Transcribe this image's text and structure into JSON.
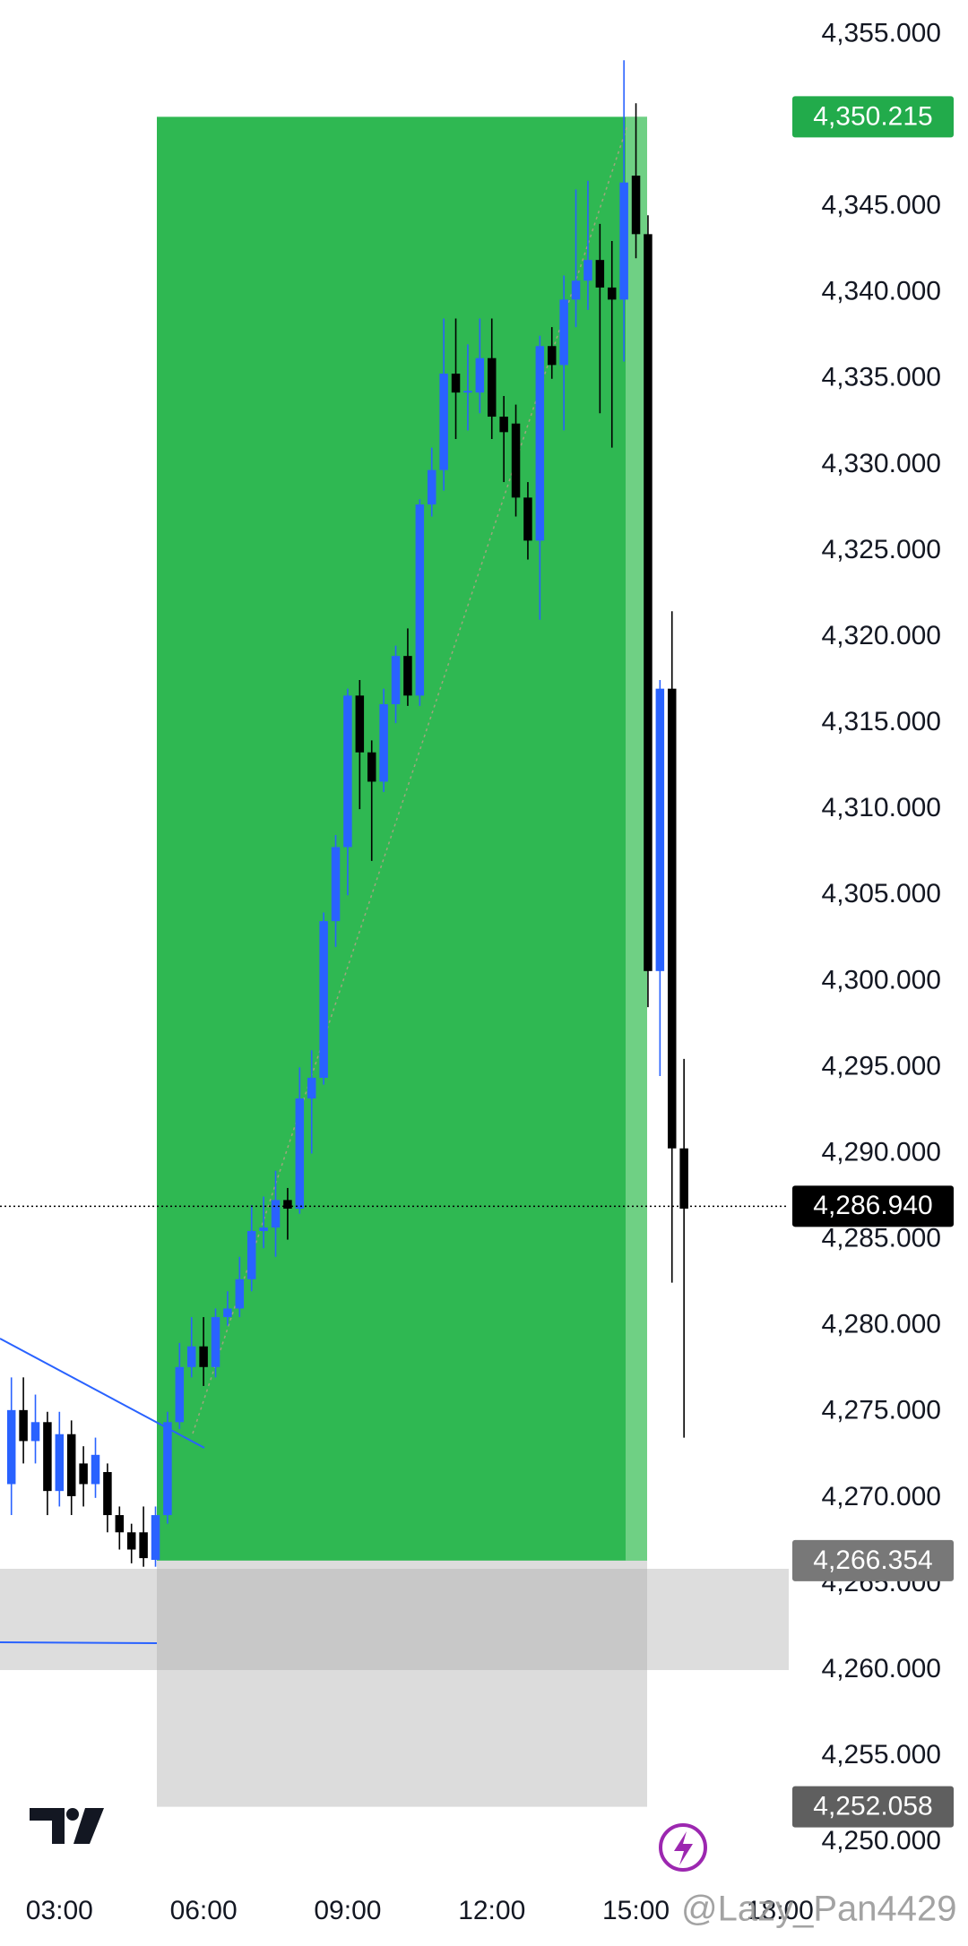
{
  "chart_data": {
    "type": "candlestick",
    "up_color": "#2962ff",
    "down_color": "#000000",
    "xlim": [
      1.763,
      18.18
    ],
    "ylim": [
      4248.5,
      4357.0
    ],
    "xticks": [
      {
        "value": 3,
        "label": "03:00"
      },
      {
        "value": 6,
        "label": "06:00"
      },
      {
        "value": 9,
        "label": "09:00"
      },
      {
        "value": 12,
        "label": "12:00"
      },
      {
        "value": 15,
        "label": "15:00"
      },
      {
        "value": 18,
        "label": "18:00"
      }
    ],
    "yticks": [
      {
        "value": 4250,
        "label": "4,250.000"
      },
      {
        "value": 4255,
        "label": "4,255.000"
      },
      {
        "value": 4260,
        "label": "4,260.000"
      },
      {
        "value": 4265,
        "label": "4,265.000"
      },
      {
        "value": 4270,
        "label": "4,270.000"
      },
      {
        "value": 4275,
        "label": "4,275.000"
      },
      {
        "value": 4280,
        "label": "4,280.000"
      },
      {
        "value": 4285,
        "label": "4,285.000"
      },
      {
        "value": 4290,
        "label": "4,290.000"
      },
      {
        "value": 4295,
        "label": "4,295.000"
      },
      {
        "value": 4300,
        "label": "4,300.000"
      },
      {
        "value": 4305,
        "label": "4,305.000"
      },
      {
        "value": 4310,
        "label": "4,310.000"
      },
      {
        "value": 4315,
        "label": "4,315.000"
      },
      {
        "value": 4320,
        "label": "4,320.000"
      },
      {
        "value": 4325,
        "label": "4,325.000"
      },
      {
        "value": 4330,
        "label": "4,330.000"
      },
      {
        "value": 4335,
        "label": "4,335.000"
      },
      {
        "value": 4340,
        "label": "4,340.000"
      },
      {
        "value": 4345,
        "label": "4,345.000"
      },
      {
        "value": 4350,
        "label": "4,350.000"
      },
      {
        "value": 4355,
        "label": "4,355.000"
      }
    ],
    "price_labels": [
      {
        "value": 4350.215,
        "label": "4,350.215",
        "color": "#22ab4b"
      },
      {
        "value": 4286.94,
        "label": "4,286.940",
        "color": "#000000"
      },
      {
        "value": 4266.354,
        "label": "4,266.354",
        "color": "#787878"
      },
      {
        "value": 4252.058,
        "label": "4,252.058",
        "color": "#5f5f5f"
      }
    ],
    "x": [
      2.0,
      2.25,
      2.5,
      2.75,
      3.0,
      3.25,
      3.5,
      3.75,
      4.0,
      4.25,
      4.5,
      4.75,
      5.0,
      5.25,
      5.5,
      5.75,
      6.0,
      6.25,
      6.5,
      6.75,
      7.0,
      7.25,
      7.5,
      7.75,
      8.0,
      8.25,
      8.5,
      8.75,
      9.0,
      9.25,
      9.5,
      9.75,
      10.0,
      10.25,
      10.5,
      10.75,
      11.0,
      11.25,
      11.5,
      11.75,
      12.0,
      12.25,
      12.5,
      12.75,
      13.0,
      13.25,
      13.5,
      13.75,
      14.0,
      14.25,
      14.5,
      14.75,
      15.0,
      15.25,
      15.5,
      15.75,
      16.0
    ],
    "open": [
      4270.8,
      4275.1,
      4273.3,
      4274.4,
      4270.4,
      4273.7,
      4272.0,
      4270.8,
      4271.5,
      4269.0,
      4268.0,
      4268.0,
      4266.4,
      4269.0,
      4274.4,
      4277.6,
      4278.8,
      4277.6,
      4280.5,
      4281.0,
      4282.7,
      4285.5,
      4285.7,
      4287.3,
      4286.8,
      4293.2,
      4294.4,
      4303.5,
      4307.8,
      4316.6,
      4313.3,
      4311.6,
      4316.1,
      4318.9,
      4316.6,
      4327.7,
      4329.7,
      4335.3,
      4334.2,
      4334.2,
      4336.2,
      4332.8,
      4332.4,
      4328.1,
      4325.6,
      4336.9,
      4335.8,
      4339.6,
      4340.7,
      4341.9,
      4340.3,
      4339.6,
      4346.8,
      4343.4,
      4300.6,
      4317.0,
      4290.3
    ],
    "high": [
      4277.0,
      4277.0,
      4276.0,
      4275.0,
      4275.0,
      4274.5,
      4273.0,
      4273.5,
      4272.0,
      4269.5,
      4268.5,
      4269.5,
      4269.5,
      4275.0,
      4279.0,
      4280.5,
      4280.5,
      4281.0,
      4282.0,
      4284.0,
      4287.0,
      4287.5,
      4289.0,
      4288.0,
      4295.0,
      4296.0,
      4304.0,
      4308.5,
      4317.0,
      4317.5,
      4314.0,
      4317.0,
      4319.5,
      4320.5,
      4328.0,
      4331.0,
      4338.5,
      4338.5,
      4337.0,
      4338.5,
      4338.5,
      4334.0,
      4333.5,
      4329.0,
      4337.5,
      4338.0,
      4341.0,
      4346.0,
      4346.5,
      4344.0,
      4343.0,
      4353.5,
      4351.0,
      4344.5,
      4317.5,
      4321.5,
      4295.5
    ],
    "low": [
      4269.0,
      4272.0,
      4272.0,
      4269.0,
      4269.5,
      4269.0,
      4269.5,
      4270.0,
      4268.0,
      4267.0,
      4266.2,
      4266.0,
      4266.0,
      4268.5,
      4274.0,
      4277.0,
      4276.5,
      4277.0,
      4280.0,
      4280.5,
      4282.0,
      4284.5,
      4284.0,
      4285.0,
      4286.5,
      4290.0,
      4294.0,
      4302.0,
      4305.0,
      4310.0,
      4307.0,
      4311.0,
      4315.0,
      4316.0,
      4316.0,
      4327.0,
      4328.5,
      4331.5,
      4332.0,
      4333.0,
      4331.5,
      4329.0,
      4327.0,
      4324.5,
      4321.0,
      4335.0,
      4332.0,
      4338.0,
      4339.0,
      4333.0,
      4331.0,
      4336.0,
      4342.0,
      4298.5,
      4294.5,
      4282.5,
      4273.5
    ],
    "close": [
      4275.1,
      4273.3,
      4274.4,
      4270.4,
      4273.7,
      4270.1,
      4270.8,
      4272.5,
      4269.0,
      4268.0,
      4267.0,
      4266.5,
      4269.0,
      4274.4,
      4277.6,
      4278.8,
      4277.6,
      4280.5,
      4281.0,
      4282.7,
      4285.5,
      4285.7,
      4287.3,
      4286.8,
      4293.2,
      4294.4,
      4303.5,
      4307.8,
      4316.6,
      4313.3,
      4311.6,
      4316.1,
      4318.9,
      4316.6,
      4327.7,
      4329.7,
      4335.3,
      4334.2,
      4334.3,
      4336.2,
      4332.8,
      4331.9,
      4328.1,
      4325.6,
      4336.9,
      4335.8,
      4339.6,
      4340.7,
      4341.9,
      4340.3,
      4339.6,
      4346.4,
      4343.4,
      4300.6,
      4317.0,
      4290.3,
      4286.8
    ],
    "watermark": "@Lazy_Pan4429"
  }
}
